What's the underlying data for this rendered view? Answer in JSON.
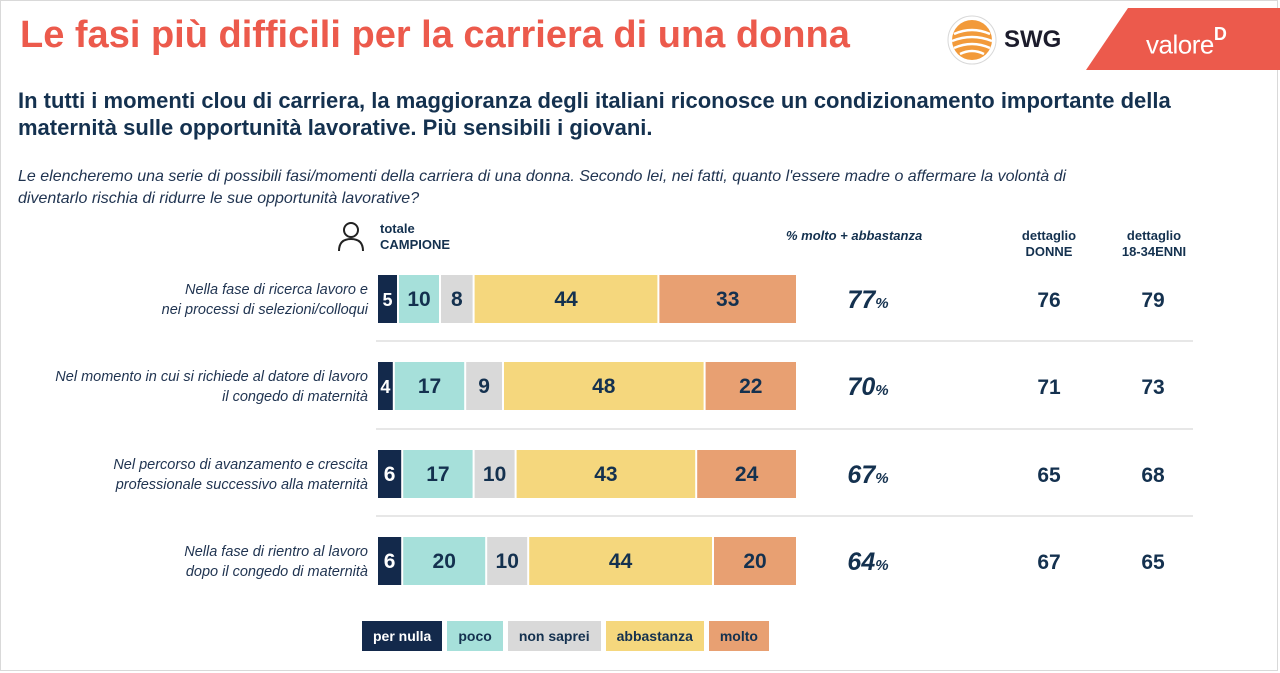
{
  "header": {
    "title": "Le fasi più difficili per la carriera di una donna",
    "swg_logo_text": "SWG",
    "valored_text": "valore",
    "valored_sup": "D"
  },
  "subtitle": "In tutti i momenti clou di carriera, la maggioranza degli italiani riconosce un condizionamento importante della maternità sulle opportunità lavorative. Più sensibili i giovani.",
  "question": "Le elencheremo una serie di possibili fasi/momenti della carriera di una donna. Secondo lei, nei fatti, quanto l'essere madre o affermare la volontà di diventarlo rischia di ridurre le sue opportunità lavorative?",
  "columns": {
    "totale_line1": "totale",
    "totale_line2": "CAMPIONE",
    "pct_header": "% molto + abbastanza",
    "donne_line1": "dettaglio",
    "donne_line2": "DONNE",
    "giovani_line1": "dettaglio",
    "giovani_line2": "18-34ENNI"
  },
  "colors": {
    "title": "#ec5a4c",
    "per_nulla": "#13294b",
    "poco": "#a6e0da",
    "non_saprei": "#d9d9d9",
    "abbastanza": "#f5d77d",
    "molto": "#e8a072"
  },
  "chart_data": {
    "type": "bar",
    "orientation": "horizontal",
    "stacked": true,
    "categories": [
      [
        "Nella fase di ricerca lavoro e",
        "nei processi di selezioni/colloqui"
      ],
      [
        "Nel momento in cui si richiede al datore di lavoro",
        "il congedo di maternità"
      ],
      [
        "Nel percorso di avanzamento e crescita",
        "professionale successivo alla maternità"
      ],
      [
        "Nella fase di rientro al lavoro",
        "dopo il congedo di maternità"
      ]
    ],
    "series": [
      {
        "name": "per nulla",
        "color": "#13294b",
        "text_color": "#ffffff",
        "values": [
          5,
          4,
          6,
          6
        ]
      },
      {
        "name": "poco",
        "color": "#a6e0da",
        "text_color": "#14314f",
        "values": [
          10,
          17,
          17,
          20
        ]
      },
      {
        "name": "non saprei",
        "color": "#d9d9d9",
        "text_color": "#14314f",
        "values": [
          8,
          9,
          10,
          10
        ]
      },
      {
        "name": "abbastanza",
        "color": "#f5d77d",
        "text_color": "#14314f",
        "values": [
          44,
          48,
          43,
          44
        ]
      },
      {
        "name": "molto",
        "color": "#e8a072",
        "text_color": "#14314f",
        "values": [
          33,
          22,
          24,
          20
        ]
      }
    ],
    "molto_abbastanza": [
      77,
      70,
      67,
      64
    ],
    "pct_suffix": "%",
    "donne": [
      76,
      71,
      65,
      67
    ],
    "giovani_18_34": [
      79,
      73,
      68,
      65
    ],
    "legend_position": "bottom"
  }
}
